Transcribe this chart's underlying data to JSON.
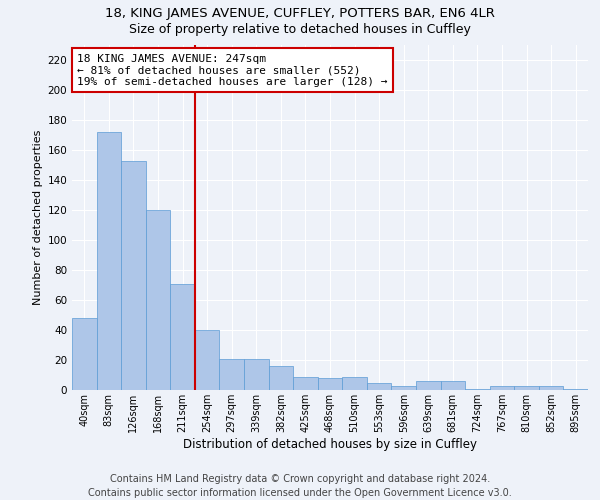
{
  "title1": "18, KING JAMES AVENUE, CUFFLEY, POTTERS BAR, EN6 4LR",
  "title2": "Size of property relative to detached houses in Cuffley",
  "xlabel": "Distribution of detached houses by size in Cuffley",
  "ylabel": "Number of detached properties",
  "categories": [
    "40sqm",
    "83sqm",
    "126sqm",
    "168sqm",
    "211sqm",
    "254sqm",
    "297sqm",
    "339sqm",
    "382sqm",
    "425sqm",
    "468sqm",
    "510sqm",
    "553sqm",
    "596sqm",
    "639sqm",
    "681sqm",
    "724sqm",
    "767sqm",
    "810sqm",
    "852sqm",
    "895sqm"
  ],
  "values": [
    48,
    172,
    153,
    120,
    71,
    40,
    21,
    21,
    16,
    9,
    8,
    9,
    5,
    3,
    6,
    6,
    1,
    3,
    3,
    3,
    1
  ],
  "bar_color": "#aec6e8",
  "bar_edgecolor": "#5b9bd5",
  "vline_color": "#cc0000",
  "vline_x_index": 5,
  "annotation_text": "18 KING JAMES AVENUE: 247sqm\n← 81% of detached houses are smaller (552)\n19% of semi-detached houses are larger (128) →",
  "annotation_box_facecolor": "#ffffff",
  "annotation_box_edgecolor": "#cc0000",
  "ylim": [
    0,
    230
  ],
  "yticks": [
    0,
    20,
    40,
    60,
    80,
    100,
    120,
    140,
    160,
    180,
    200,
    220
  ],
  "footer1": "Contains HM Land Registry data © Crown copyright and database right 2024.",
  "footer2": "Contains public sector information licensed under the Open Government Licence v3.0.",
  "background_color": "#eef2f9",
  "grid_color": "#ffffff",
  "title1_fontsize": 9.5,
  "title2_fontsize": 9,
  "annot_fontsize": 8,
  "footer_fontsize": 7,
  "ylabel_fontsize": 8,
  "xlabel_fontsize": 8.5
}
